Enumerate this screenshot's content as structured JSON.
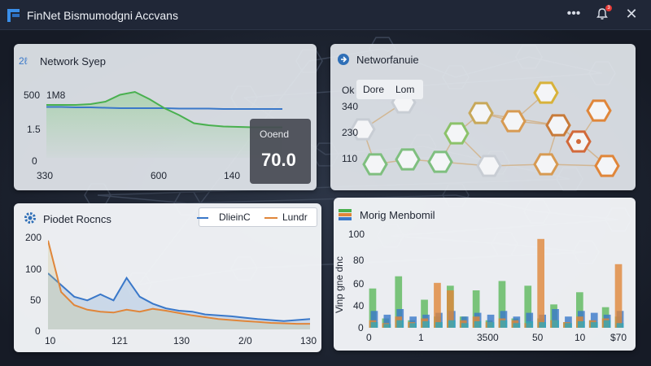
{
  "window": {
    "title": "FinNet Bismumodgni Accvans",
    "notification_count": "3",
    "more_icon": "more-horizontal-icon",
    "bell_icon": "bell-icon",
    "close_icon": "close-icon"
  },
  "colors": {
    "accent_blue": "#3a78c9",
    "green": "#49b04f",
    "orange": "#e0863a",
    "teal": "#31a8b8"
  },
  "panels": {
    "network_speed": {
      "title": "Network Syep",
      "icon_label": "2ℓ",
      "y_ticks": [
        "500",
        "1.5",
        "0"
      ],
      "unit_label": "1M8",
      "x_ticks": [
        "330",
        "600",
        "140"
      ],
      "overlay": {
        "label": "Ooend",
        "value": "70.0"
      },
      "chart_data": {
        "type": "line",
        "x": [
          0,
          1,
          2,
          3,
          4,
          5,
          6,
          7,
          8,
          9,
          10,
          11,
          12,
          13,
          14,
          15,
          16
        ],
        "series": [
          {
            "values": [
              1.25,
              1.25,
              1.24,
              1.24,
              1.23,
              1.22,
              1.22,
              1.22,
              1.22,
              1.21,
              1.21,
              1.21,
              1.2,
              1.2,
              1.2,
              1.2,
              1.2
            ]
          },
          {
            "values": [
              1.3,
              1.3,
              1.3,
              1.32,
              1.38,
              1.55,
              1.62,
              1.44,
              1.22,
              1.05,
              0.85,
              0.8,
              0.77,
              0.76,
              0.75,
              0.75,
              0.75
            ]
          }
        ]
      }
    },
    "network_map": {
      "title": "Networfanuie",
      "legend": {
        "ok": "Ok",
        "done": "Dore",
        "lom": "Lom"
      },
      "y_ticks": [
        "340",
        "230",
        "110"
      ]
    },
    "product_records": {
      "title": "Piodet Rocncs",
      "legend": [
        "DlieinC",
        "Lundr"
      ],
      "y_ticks": [
        "200",
        "100",
        "50",
        "0"
      ],
      "x_ticks": [
        "10",
        "121",
        "130",
        "2/0",
        "130"
      ],
      "chart_data": {
        "type": "area",
        "x": [
          0,
          1,
          2,
          3,
          4,
          5,
          6,
          7,
          8,
          9,
          10,
          11,
          12,
          13,
          14,
          15,
          16,
          17,
          18,
          19,
          20
        ],
        "series": [
          {
            "name": "DlieinC",
            "values": [
              120,
              95,
              70,
              62,
              75,
              62,
              110,
              70,
              55,
              45,
              40,
              38,
              32,
              30,
              28,
              25,
              22,
              20,
              18,
              20,
              22
            ]
          },
          {
            "name": "Lundr",
            "values": [
              190,
              80,
              52,
              42,
              38,
              36,
              42,
              38,
              44,
              40,
              35,
              30,
              26,
              22,
              20,
              18,
              16,
              14,
              13,
              12,
              12
            ]
          }
        ],
        "ylim": [
          0,
          200
        ]
      }
    },
    "monthly_members": {
      "title": "Morig Menbomil",
      "ylabel": "Vinp gne dnc",
      "y_ticks": [
        "100",
        "80",
        "60",
        "40",
        "0"
      ],
      "x_ticks": [
        "0",
        "1",
        "3500",
        "50",
        "10",
        "$70"
      ],
      "chart_data": {
        "type": "bar",
        "series": [
          {
            "name": "green",
            "values": [
              42,
              10,
              55,
              8,
              30,
              12,
              45,
              12,
              40,
              8,
              50,
              10,
              45,
              10,
              25,
              6,
              38,
              8,
              22,
              12
            ]
          },
          {
            "name": "blue",
            "values": [
              18,
              14,
              20,
              12,
              14,
              16,
              18,
              12,
              16,
              14,
              18,
              12,
              16,
              14,
              20,
              12,
              18,
              16,
              14,
              18
            ]
          },
          {
            "name": "orange",
            "values": [
              8,
              5,
              12,
              6,
              10,
              48,
              40,
              8,
              12,
              6,
              10,
              8,
              5,
              95,
              8,
              6,
              12,
              8,
              10,
              68
            ]
          },
          {
            "name": "teal",
            "values": [
              6,
              4,
              8,
              5,
              7,
              6,
              8,
              5,
              7,
              6,
              8,
              5,
              7,
              6,
              8,
              5,
              7,
              6,
              8,
              5
            ]
          }
        ],
        "ylim": [
          0,
          100
        ]
      }
    }
  }
}
